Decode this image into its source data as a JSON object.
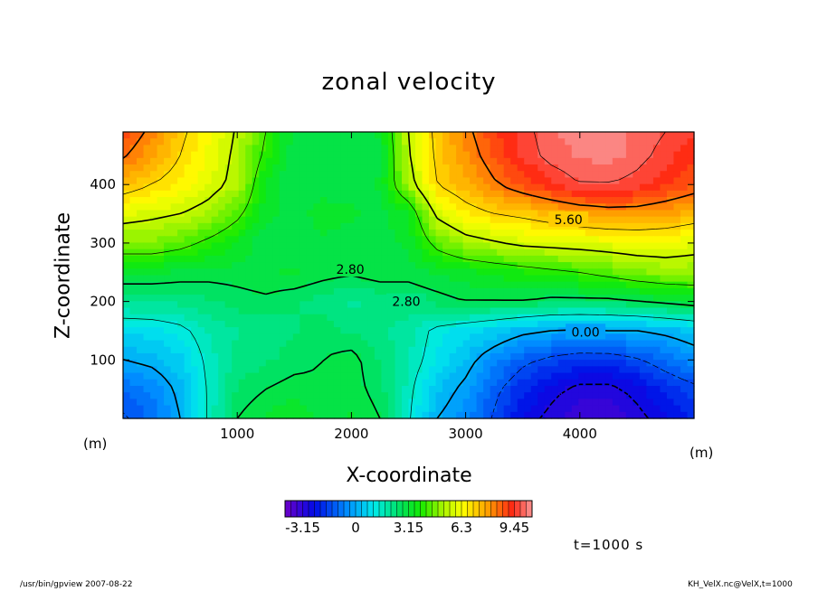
{
  "title": "zonal velocity",
  "footer": {
    "left": "/usr/bin/gpview   2007-08-22",
    "right": "KH_VelX.nc@VelX,t=1000"
  },
  "time_label": "t=1000 s",
  "colorbar": {
    "min": -4.2,
    "max": 10.5,
    "step": 0.35,
    "tick_labels": [
      "-3.15",
      "0",
      "3.15",
      "6.3",
      "9.45"
    ],
    "tick_values": [
      -3.15,
      0,
      3.15,
      6.3,
      9.45
    ]
  },
  "chart_data": {
    "type": "heatmap",
    "title": "zonal velocity",
    "xlabel": "X-coordinate",
    "ylabel": "Z-coordinate",
    "x_unit": "(m)",
    "y_unit": "(m)",
    "xlim": [
      0,
      5000
    ],
    "ylim": [
      0,
      490
    ],
    "x_ticks": [
      1000,
      2000,
      3000,
      4000
    ],
    "y_ticks": [
      100,
      200,
      300,
      400
    ],
    "x": [
      0,
      250,
      500,
      750,
      1000,
      1250,
      1500,
      1750,
      2000,
      2250,
      2500,
      2750,
      3000,
      3250,
      3500,
      3750,
      4000,
      4250,
      4500,
      4750,
      5000
    ],
    "z": [
      0,
      50,
      100,
      150,
      200,
      250,
      300,
      350,
      400,
      450,
      490
    ],
    "values": [
      [
        -1.5,
        -1.0,
        0.0,
        1.5,
        2.8,
        3.2,
        3.5,
        3.0,
        3.2,
        2.8,
        1.5,
        0.0,
        -0.5,
        -1.5,
        -2.5,
        -3.0,
        -3.5,
        -3.4,
        -3.0,
        -2.5,
        -2.0
      ],
      [
        -1.0,
        -0.6,
        0.2,
        1.5,
        2.5,
        2.8,
        3.0,
        2.9,
        3.0,
        2.6,
        1.6,
        0.4,
        -0.2,
        -1.2,
        -2.0,
        -2.6,
        -3.0,
        -3.0,
        -2.6,
        -2.0,
        -1.6
      ],
      [
        0.0,
        0.2,
        0.6,
        1.6,
        2.2,
        2.4,
        2.6,
        2.8,
        3.0,
        2.4,
        1.8,
        1.0,
        0.3,
        -0.5,
        -1.2,
        -1.6,
        -1.8,
        -1.8,
        -1.5,
        -1.0,
        -0.5
      ],
      [
        0.8,
        0.9,
        1.2,
        1.8,
        2.1,
        2.2,
        2.4,
        2.6,
        2.4,
        2.2,
        1.9,
        1.2,
        0.9,
        0.6,
        0.2,
        0.0,
        -0.1,
        0.0,
        0.0,
        0.2,
        0.5
      ],
      [
        2.2,
        2.2,
        2.2,
        2.4,
        2.6,
        2.7,
        2.5,
        2.3,
        2.0,
        2.2,
        2.4,
        2.6,
        2.8,
        2.8,
        2.8,
        2.6,
        2.6,
        2.6,
        2.8,
        3.0,
        3.2
      ],
      [
        3.2,
        3.2,
        3.1,
        3.0,
        3.0,
        3.1,
        3.2,
        3.0,
        2.9,
        3.1,
        3.0,
        3.2,
        3.4,
        3.6,
        3.8,
        4.0,
        4.2,
        4.5,
        4.8,
        5.0,
        5.0
      ],
      [
        4.8,
        4.8,
        4.5,
        4.0,
        3.5,
        2.8,
        3.0,
        3.1,
        3.0,
        3.0,
        3.2,
        4.5,
        5.2,
        5.5,
        5.8,
        5.9,
        6.0,
        6.1,
        6.2,
        6.2,
        6.0
      ],
      [
        6.0,
        5.8,
        5.6,
        5.2,
        4.4,
        3.3,
        3.0,
        3.3,
        3.2,
        3.0,
        3.5,
        5.8,
        6.6,
        7.0,
        7.2,
        7.5,
        7.8,
        8.0,
        8.0,
        7.8,
        7.5
      ],
      [
        7.5,
        7.0,
        6.6,
        6.0,
        5.3,
        3.4,
        2.8,
        3.0,
        3.0,
        3.2,
        5.2,
        7.0,
        7.6,
        8.3,
        8.9,
        9.4,
        9.8,
        9.8,
        9.6,
        9.2,
        8.8
      ],
      [
        8.5,
        7.8,
        7.0,
        6.2,
        5.4,
        4.0,
        2.9,
        2.8,
        2.8,
        3.0,
        5.5,
        7.2,
        8.0,
        8.8,
        9.5,
        10.0,
        10.2,
        10.3,
        10.0,
        9.6,
        9.2
      ],
      [
        9.0,
        8.2,
        7.2,
        6.4,
        5.5,
        4.2,
        3.0,
        2.8,
        2.9,
        3.2,
        5.6,
        7.3,
        8.2,
        9.0,
        9.6,
        10.1,
        10.3,
        10.3,
        10.1,
        9.8,
        9.5
      ]
    ],
    "contour_labels": [
      {
        "text": "5.60",
        "x": 3900,
        "z": 340
      },
      {
        "text": "2.80",
        "x": 1990,
        "z": 255
      },
      {
        "text": "2.80",
        "x": 2480,
        "z": 200
      },
      {
        "text": "0.00",
        "x": 4050,
        "z": 148
      }
    ]
  }
}
